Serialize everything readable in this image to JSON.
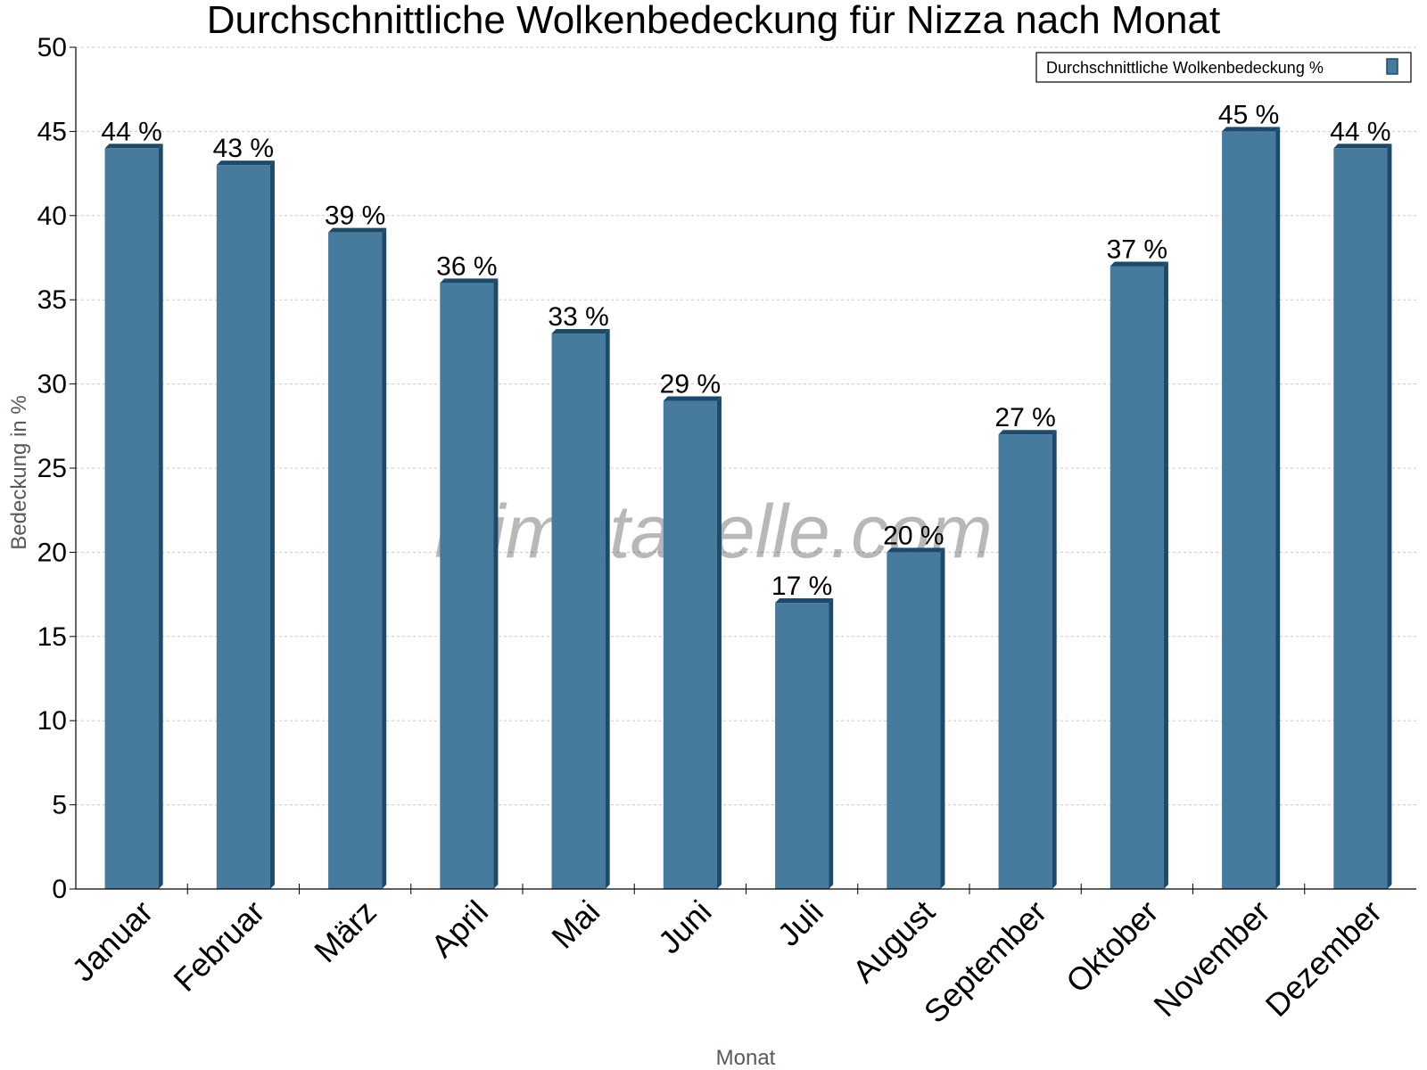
{
  "chart_data": {
    "type": "bar",
    "title": "Durchschnittliche Wolkenbedeckung für Nizza nach Monat",
    "xlabel": "Monat",
    "ylabel": "Bedeckung in %",
    "categories": [
      "Januar",
      "Februar",
      "März",
      "April",
      "Mai",
      "Juni",
      "Juli",
      "August",
      "September",
      "Oktober",
      "November",
      "Dezember"
    ],
    "series": [
      {
        "name": "Durchschnittliche Wolkenbedeckung %",
        "values": [
          44,
          43,
          39,
          36,
          33,
          29,
          17,
          20,
          27,
          37,
          45,
          44
        ]
      }
    ],
    "data_labels": [
      "44 %",
      "43 %",
      "39 %",
      "36 %",
      "33 %",
      "29 %",
      "17 %",
      "20 %",
      "27 %",
      "37 %",
      "45 %",
      "44 %"
    ],
    "ylim": [
      0,
      50
    ],
    "yticks": [
      "0",
      "5",
      "10",
      "15",
      "20",
      "25",
      "30",
      "35",
      "40",
      "45",
      "50"
    ],
    "grid": true,
    "legend_position": "top-right",
    "watermark": "klimatabelle.com",
    "colors": {
      "bar": "#467b9e",
      "bar_dark": "#1c4a6b",
      "grid": "#c8c8c8"
    }
  }
}
